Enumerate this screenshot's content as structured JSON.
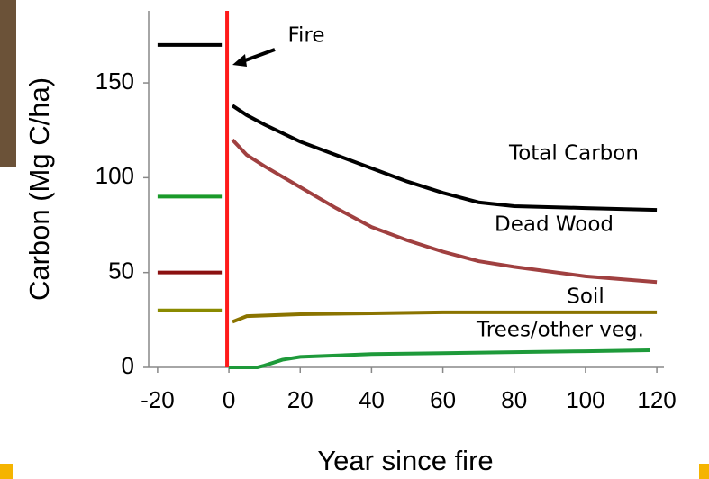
{
  "chart_data": {
    "type": "line",
    "x_label": "Year since fire",
    "y_label": "Carbon (Mg C/ha)",
    "xlim": [
      -22.5,
      122
    ],
    "ylim": [
      0,
      188
    ],
    "xticks": [
      -20,
      0,
      20,
      40,
      60,
      80,
      100,
      120
    ],
    "yticks": [
      0,
      50,
      100,
      150
    ],
    "fire_year": 0,
    "fire_color": "#ff1a1a",
    "fire_label": "Fire",
    "series": [
      {
        "name": "Total Carbon",
        "color": "#000000",
        "pre_color": "#000000",
        "x": [
          -20,
          -2,
          -1,
          1,
          5,
          10,
          20,
          30,
          40,
          50,
          60,
          70,
          80,
          100,
          120
        ],
        "values": [
          170,
          170,
          null,
          138,
          133,
          128,
          119,
          112,
          105,
          98,
          92,
          87,
          85,
          84,
          83
        ]
      },
      {
        "name": "Dead Wood",
        "color": "#a04040",
        "pre_color": "#8b1010",
        "x": [
          -20,
          -2,
          -1,
          1,
          5,
          10,
          20,
          30,
          40,
          50,
          60,
          70,
          80,
          100,
          120
        ],
        "values": [
          50,
          50,
          null,
          120,
          112,
          106,
          95,
          84,
          74,
          67,
          61,
          56,
          53,
          48,
          45
        ]
      },
      {
        "name": "Soil",
        "color": "#8b7400",
        "pre_color": "#8a8a00",
        "x": [
          -20,
          -2,
          -1,
          1,
          5,
          20,
          40,
          60,
          80,
          120
        ],
        "values": [
          30,
          30,
          null,
          24,
          27,
          28,
          28.5,
          29,
          29,
          29
        ]
      },
      {
        "name": "Trees/other veg.",
        "color": "#1e9a3a",
        "pre_color": "#1a9a2a",
        "x": [
          -20,
          -2,
          -1,
          0,
          8,
          10,
          15,
          20,
          40,
          60,
          80,
          100,
          118
        ],
        "values": [
          90,
          90,
          null,
          0,
          0,
          1,
          4,
          5.5,
          7,
          7.5,
          8,
          8.5,
          9
        ]
      }
    ]
  }
}
